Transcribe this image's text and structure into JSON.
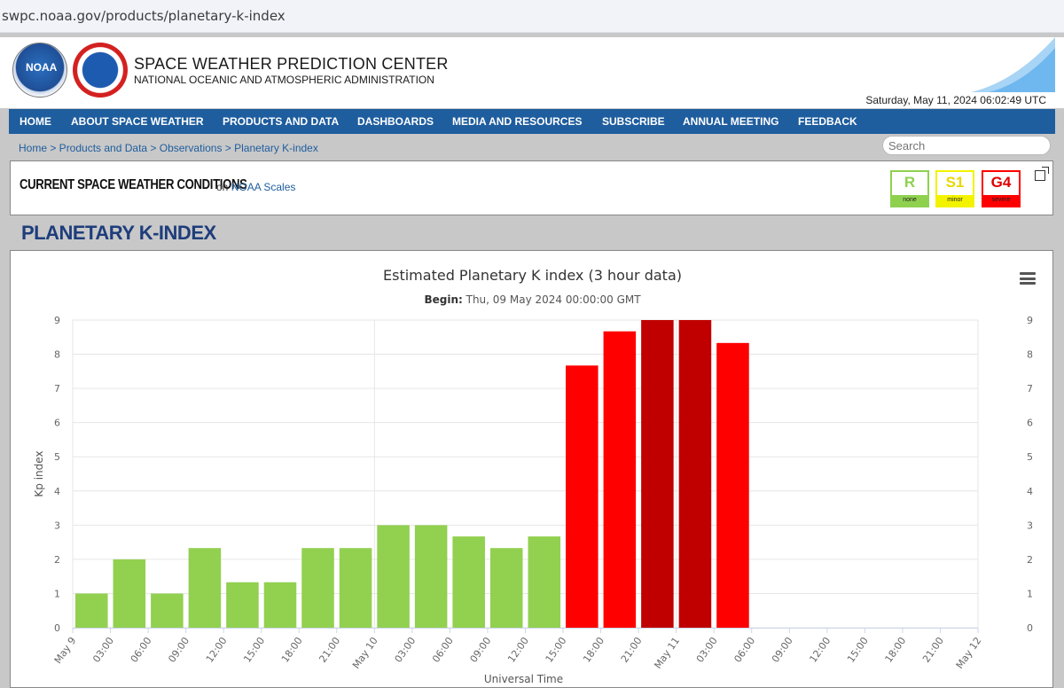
{
  "browser": {
    "url": "swpc.noaa.gov/products/planetary-k-index"
  },
  "header": {
    "noaa_logo_text": "NOAA",
    "title": "SPACE WEATHER PREDICTION CENTER",
    "subtitle": "NATIONAL OCEANIC AND ATMOSPHERIC ADMINISTRATION",
    "datetime": "Saturday, May 11, 2024 06:02:49 UTC"
  },
  "nav": {
    "items": [
      "HOME",
      "ABOUT SPACE WEATHER",
      "PRODUCTS AND DATA",
      "DASHBOARDS",
      "MEDIA AND RESOURCES",
      "SUBSCRIBE",
      "ANNUAL MEETING",
      "FEEDBACK"
    ]
  },
  "breadcrumb": "Home > Products and Data > Observations > Planetary K-index",
  "search": {
    "placeholder": "Search"
  },
  "conditions": {
    "title": "CURRENT SPACE WEATHER CONDITIONS",
    "on_text": "on",
    "link": "NOAA Scales",
    "scales": [
      {
        "value": "R",
        "label": "none",
        "color": "#8fd14f"
      },
      {
        "value": "S1",
        "label": "minor",
        "color": "#f3f300"
      },
      {
        "value": "G4",
        "label": "severe",
        "color": "#ff0000"
      }
    ]
  },
  "page_title": "PLANETARY K-INDEX",
  "chart_data": {
    "type": "bar",
    "title": "Estimated Planetary K index (3 hour data)",
    "subtitle_label": "Begin:",
    "subtitle_value": "Thu, 09 May 2024 00:00:00 GMT",
    "xlabel": "Universal Time",
    "ylabel": "Kp index",
    "ylim": [
      0,
      9
    ],
    "yticks": [
      0,
      1,
      2,
      3,
      4,
      5,
      6,
      7,
      8,
      9
    ],
    "xticks": [
      "May 9",
      "03:00",
      "06:00",
      "09:00",
      "12:00",
      "15:00",
      "18:00",
      "21:00",
      "May 10",
      "03:00",
      "06:00",
      "09:00",
      "12:00",
      "15:00",
      "18:00",
      "21:00",
      "May 11",
      "03:00",
      "06:00",
      "09:00",
      "12:00",
      "15:00",
      "18:00",
      "21:00",
      "May 12"
    ],
    "values": [
      1.0,
      2.0,
      1.0,
      2.33,
      1.33,
      1.33,
      2.33,
      2.33,
      3.0,
      3.0,
      2.67,
      2.33,
      2.67,
      7.67,
      8.67,
      9.0,
      9.0,
      8.33
    ],
    "colors": [
      "#92d050",
      "#92d050",
      "#92d050",
      "#92d050",
      "#92d050",
      "#92d050",
      "#92d050",
      "#92d050",
      "#92d050",
      "#92d050",
      "#92d050",
      "#92d050",
      "#92d050",
      "#ff0000",
      "#ff0000",
      "#c00000",
      "#c00000",
      "#ff0000"
    ],
    "grid": true
  }
}
